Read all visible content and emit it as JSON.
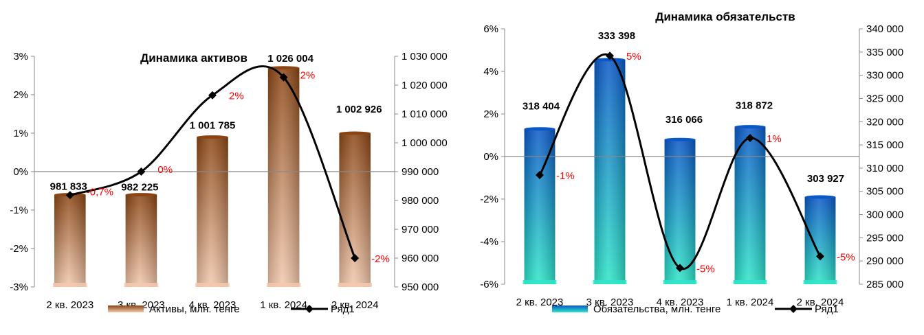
{
  "chart_data": [
    {
      "type": "bar",
      "title": "Динамика активов",
      "categories": [
        "2 кв. 2023",
        "3 кв. 2023",
        "4 кв. 2023",
        "1 кв. 2024",
        "2 кв. 2024"
      ],
      "series": [
        {
          "name": "Активы, млн. тенге",
          "type": "bar",
          "axis": "left",
          "values": [
            -0.6,
            -0.6,
            0.9,
            2.7,
            1.0
          ],
          "labels": [
            "981 833",
            "982 225",
            "1 001 785",
            "1 026 004",
            "1 002 926"
          ]
        },
        {
          "name": "Ряд1",
          "type": "line",
          "axis": "right",
          "values": [
            981833,
            990000,
            1016500,
            1022700,
            960000
          ],
          "labels": [
            "-0,7%",
            "0%",
            "2%",
            "2%",
            "-2%"
          ]
        }
      ],
      "left_axis": {
        "min": -3,
        "max": 3,
        "ticks": [
          "3%",
          "2%",
          "1%",
          "0%",
          "-1%",
          "-2%",
          "-3%"
        ]
      },
      "right_axis": {
        "min": 950000,
        "max": 1030000,
        "ticks": [
          "1 030 000",
          "1 020 000",
          "1 010 000",
          "1 000 000",
          "990 000",
          "980 000",
          "970 000",
          "960 000",
          "950 000"
        ]
      },
      "legend_position": "bottom",
      "colors": {
        "bar_top": "#8b4513",
        "bar_bottom": "#f3c9ae",
        "line": "#000000",
        "percent": "#ff0000"
      }
    },
    {
      "type": "bar",
      "title": "Динамика обязательств",
      "categories": [
        "2 кв. 2023",
        "3 кв. 2023",
        "4 кв. 2023",
        "1 кв. 2024",
        "2 кв. 2024"
      ],
      "series": [
        {
          "name": "Обязательства, млн. тенге",
          "type": "bar",
          "axis": "left",
          "values": [
            1.3,
            4.55,
            0.8,
            1.4,
            -1.9
          ],
          "labels": [
            "318 404",
            "333 398",
            "316 066",
            "318 872",
            "303 927"
          ]
        },
        {
          "name": "Ряд1",
          "type": "line",
          "axis": "right",
          "values": [
            308500,
            334200,
            288500,
            316500,
            291000
          ],
          "labels": [
            "-1%",
            "5%",
            "-5%",
            "1%",
            "-5%"
          ]
        }
      ],
      "left_axis": {
        "min": -6,
        "max": 6,
        "ticks": [
          "6%",
          "4%",
          "2%",
          "0%",
          "-2%",
          "-4%",
          "-6%"
        ]
      },
      "right_axis": {
        "min": 285000,
        "max": 340000,
        "ticks": [
          "340 000",
          "335 000",
          "330 000",
          "325 000",
          "320 000",
          "315 000",
          "310 000",
          "305 000",
          "300 000",
          "295 000",
          "290 000",
          "285 000"
        ]
      },
      "legend_position": "bottom",
      "colors": {
        "bar_top": "#0a58c8",
        "bar_bottom": "#2ee6c8",
        "line": "#000000",
        "percent": "#ff0000"
      }
    }
  ]
}
